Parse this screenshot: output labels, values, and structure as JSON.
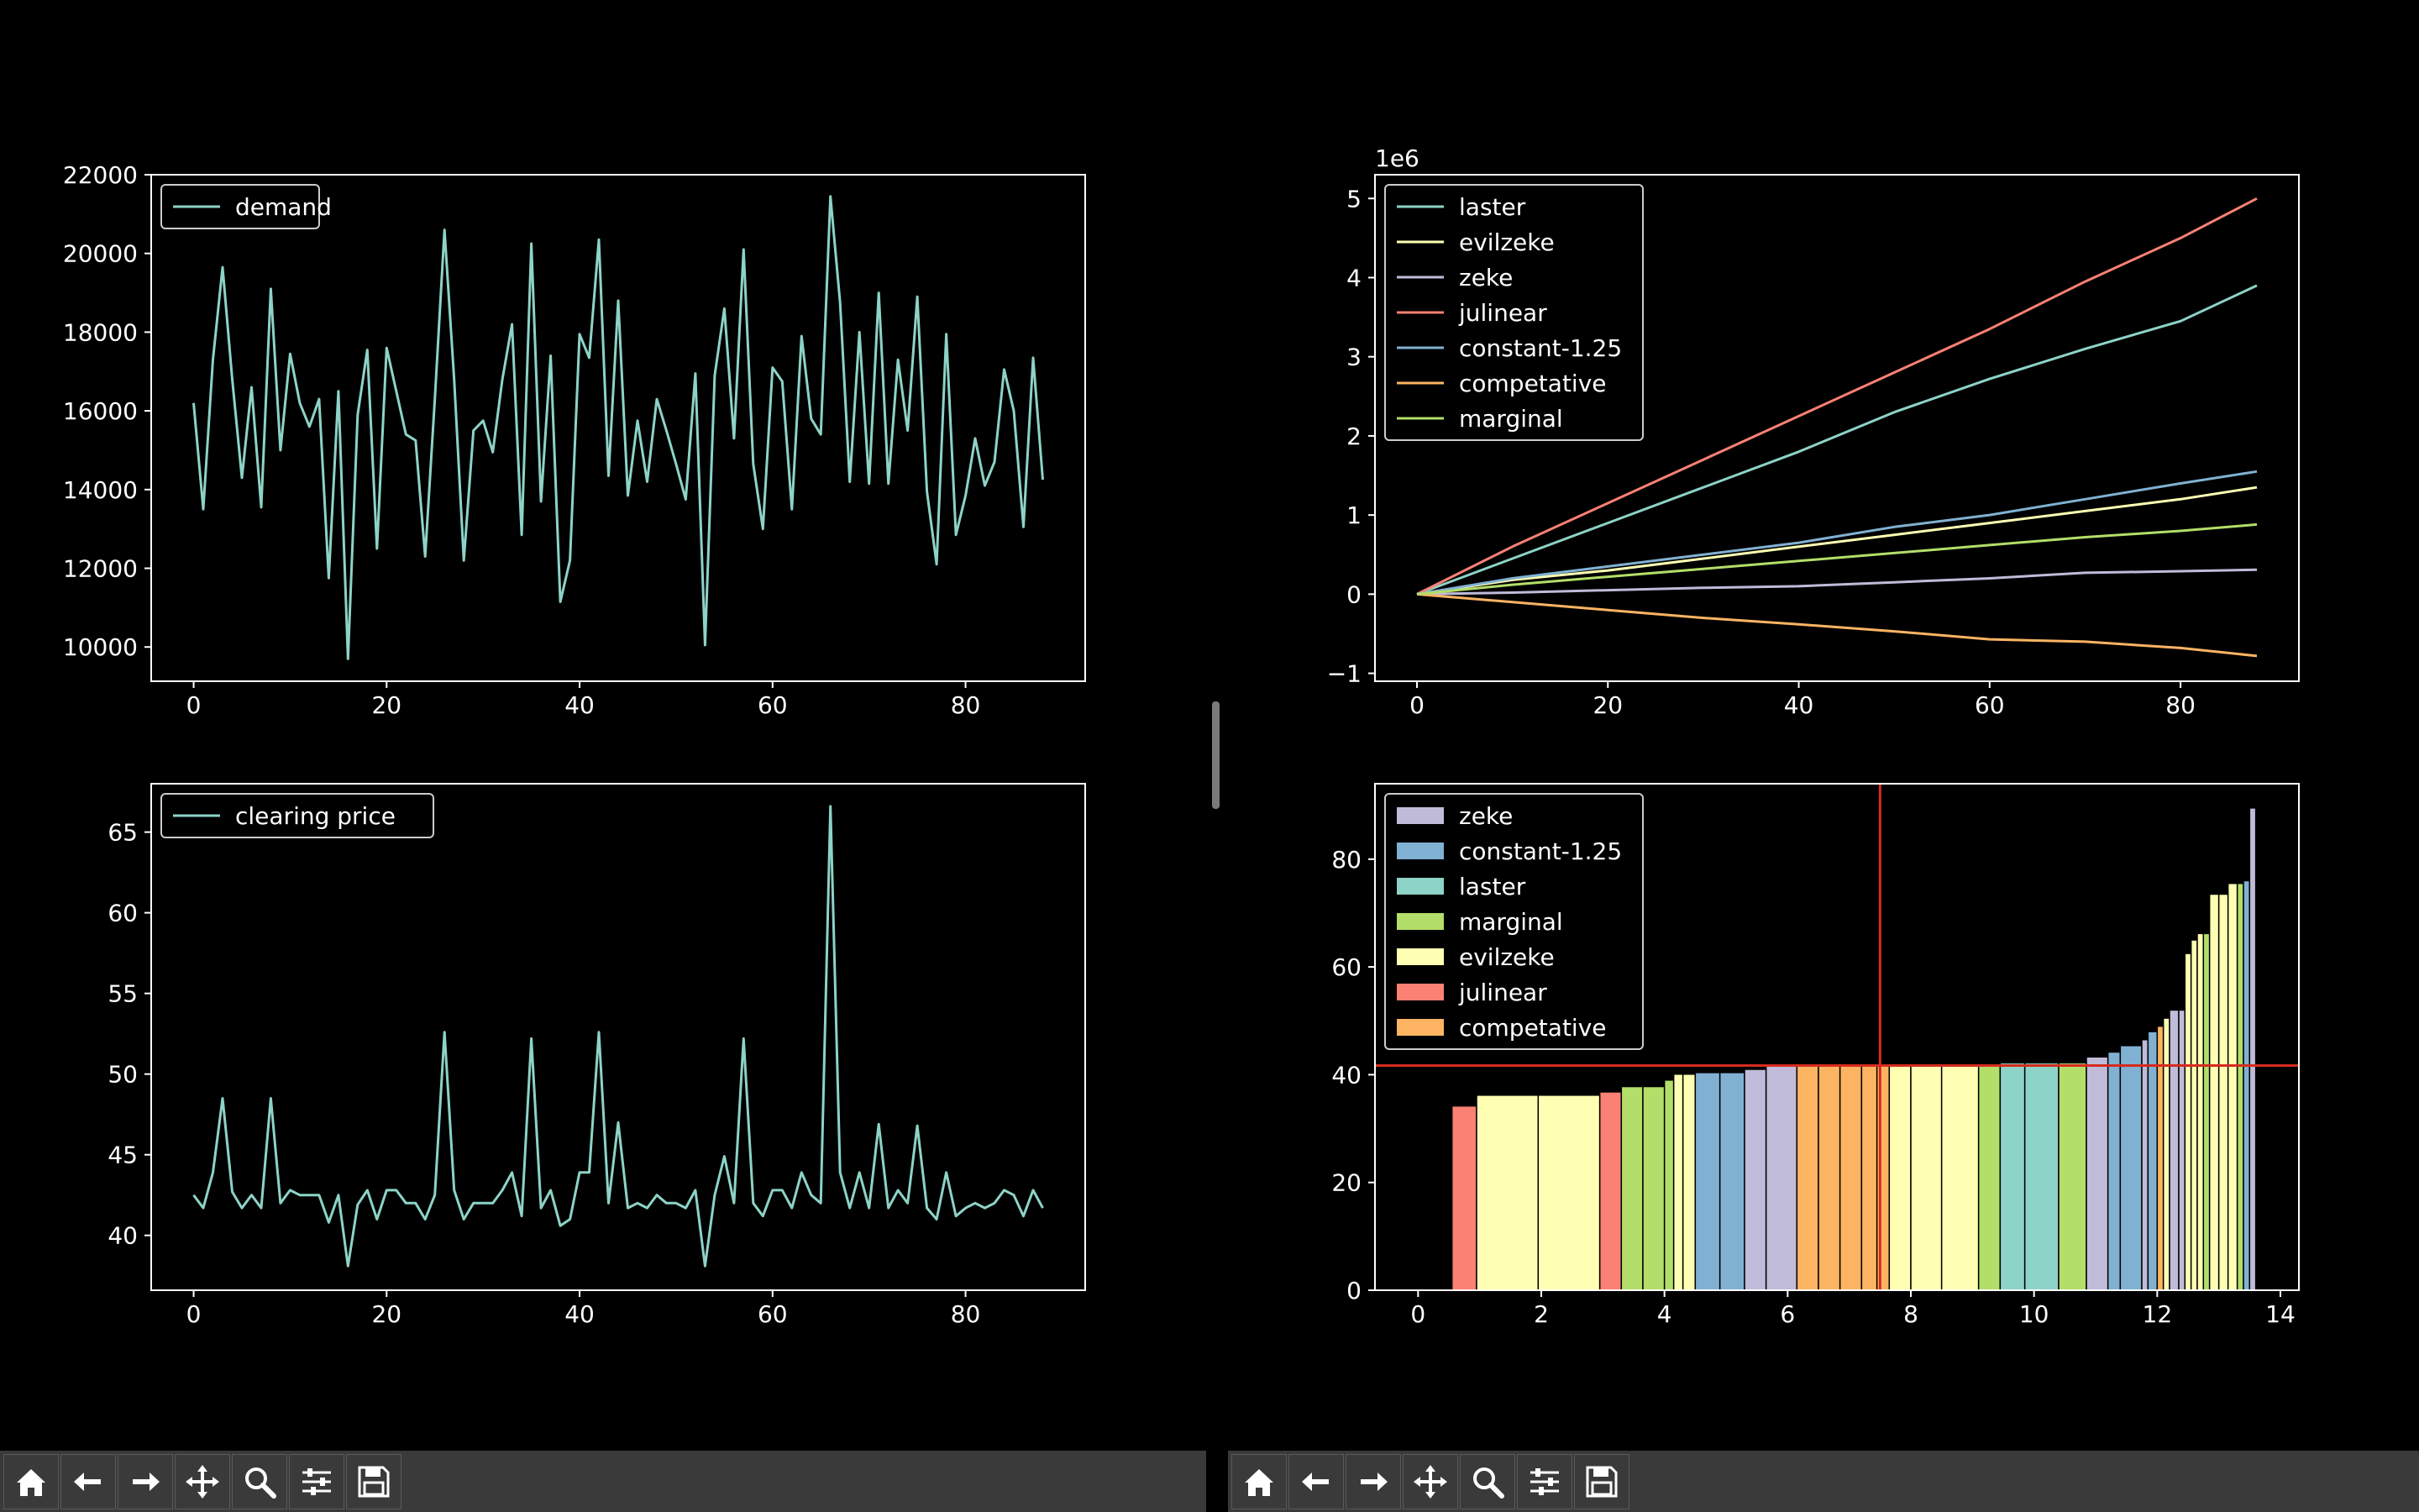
{
  "toolbar": {
    "buttons": [
      {
        "name": "home-icon",
        "label": "Home"
      },
      {
        "name": "back-arrow-icon",
        "label": "Back"
      },
      {
        "name": "forward-arrow-icon",
        "label": "Forward"
      },
      {
        "name": "pan-move-icon",
        "label": "Pan"
      },
      {
        "name": "zoom-magnifier-icon",
        "label": "Zoom"
      },
      {
        "name": "subplots-sliders-icon",
        "label": "Configure subplots"
      },
      {
        "name": "save-floppy-icon",
        "label": "Save"
      }
    ]
  },
  "colors": {
    "background": "#000000",
    "axes": "#ffffff",
    "laster": "#8dd3c7",
    "evilzeke": "#feffb3",
    "zeke": "#bfbbd9",
    "julinear": "#fa8174",
    "constant-1.25": "#81b1d2",
    "competative": "#fdb462",
    "marginal": "#b3de69",
    "refline": "#d62b1f"
  },
  "chart_data": [
    {
      "id": "demand",
      "type": "line",
      "title": "",
      "xlabel": "",
      "ylabel": "",
      "xlim": [
        -4.4,
        92.4
      ],
      "ylim": [
        9130,
        22000
      ],
      "xticks": [
        0,
        20,
        40,
        60,
        80
      ],
      "yticks": [
        10000,
        12000,
        14000,
        16000,
        18000,
        20000,
        22000
      ],
      "legend": {
        "placement": "upper-left"
      },
      "series": [
        {
          "name": "demand",
          "color": "#8dd3c7",
          "x_start": 0,
          "values": [
            16200,
            13500,
            17300,
            19650,
            16800,
            14300,
            16600,
            13550,
            19100,
            15000,
            17450,
            16200,
            15600,
            16300,
            11750,
            16500,
            9700,
            15900,
            17550,
            12500,
            17600,
            16500,
            15400,
            15250,
            12300,
            16300,
            20600,
            16800,
            12200,
            15500,
            15750,
            14950,
            16800,
            18200,
            12850,
            20250,
            13700,
            17400,
            11150,
            12200,
            17950,
            17350,
            20350,
            14350,
            18800,
            13850,
            15750,
            14200,
            16300,
            15500,
            14650,
            13750,
            16950,
            10050,
            16900,
            18600,
            15300,
            20100,
            14650,
            13000,
            17100,
            16750,
            13500,
            17900,
            15800,
            15400,
            21450,
            18750,
            14200,
            18000,
            14150,
            19000,
            14150,
            17300,
            15500,
            18900,
            13950,
            12100,
            17950,
            12850,
            13850,
            15300,
            14100,
            14700,
            17050,
            16000,
            13050,
            17350,
            14250
          ]
        }
      ]
    },
    {
      "id": "clearing-price",
      "type": "line",
      "title": "",
      "xlabel": "",
      "ylabel": "",
      "xlim": [
        -4.4,
        92.4
      ],
      "ylim": [
        36.6,
        68.0
      ],
      "xticks": [
        0,
        20,
        40,
        60,
        80
      ],
      "yticks": [
        40,
        45,
        50,
        55,
        60,
        65
      ],
      "legend": {
        "placement": "upper-left"
      },
      "series": [
        {
          "name": "clearing price",
          "color": "#8dd3c7",
          "x_start": 0,
          "values": [
            42.5,
            41.7,
            43.9,
            48.5,
            42.7,
            41.7,
            42.5,
            41.7,
            48.5,
            42.0,
            42.8,
            42.5,
            42.5,
            42.5,
            40.8,
            42.5,
            38.1,
            41.9,
            42.8,
            41.0,
            42.8,
            42.8,
            42.0,
            42.0,
            41.0,
            42.5,
            52.6,
            42.8,
            41.0,
            42.0,
            42.0,
            42.0,
            42.8,
            43.9,
            41.2,
            52.2,
            41.7,
            42.8,
            40.6,
            41.0,
            43.9,
            43.9,
            52.6,
            42.0,
            47.0,
            41.7,
            42.0,
            41.7,
            42.5,
            42.0,
            42.0,
            41.7,
            42.8,
            38.1,
            42.5,
            44.9,
            42.0,
            52.2,
            42.0,
            41.2,
            42.8,
            42.8,
            41.7,
            43.9,
            42.5,
            42.0,
            66.6,
            43.9,
            41.7,
            43.9,
            41.7,
            46.9,
            41.7,
            42.8,
            42.0,
            46.8,
            41.7,
            41.0,
            43.9,
            41.2,
            41.7,
            42.0,
            41.7,
            42.0,
            42.8,
            42.5,
            41.2,
            42.8,
            41.7
          ]
        }
      ]
    },
    {
      "id": "cumulative-profit",
      "type": "line",
      "title": "",
      "xlabel": "",
      "ylabel": "",
      "y_offset_label": "1e6",
      "xlim": [
        -4.4,
        92.4
      ],
      "ylim": [
        -1.1,
        5.3
      ],
      "xticks": [
        0,
        20,
        40,
        60,
        80
      ],
      "yticks": [
        -1,
        0,
        1,
        2,
        3,
        4,
        5
      ],
      "legend": {
        "placement": "upper-left"
      },
      "series": [
        {
          "name": "laster",
          "color": "#8dd3c7",
          "x": [
            0,
            10,
            20,
            30,
            40,
            50,
            60,
            70,
            80,
            88
          ],
          "values": [
            0,
            0.45,
            0.9,
            1.35,
            1.8,
            2.3,
            2.72,
            3.1,
            3.45,
            3.9
          ]
        },
        {
          "name": "evilzeke",
          "color": "#feffb3",
          "x": [
            0,
            10,
            20,
            30,
            40,
            50,
            60,
            70,
            80,
            88
          ],
          "values": [
            0,
            0.18,
            0.3,
            0.45,
            0.6,
            0.75,
            0.9,
            1.05,
            1.2,
            1.35
          ]
        },
        {
          "name": "zeke",
          "color": "#bfbbd9",
          "x": [
            0,
            10,
            20,
            30,
            40,
            50,
            60,
            70,
            80,
            88
          ],
          "values": [
            0,
            0.02,
            0.05,
            0.08,
            0.1,
            0.15,
            0.2,
            0.27,
            0.29,
            0.31
          ]
        },
        {
          "name": "julinear",
          "color": "#fa8174",
          "x": [
            0,
            10,
            20,
            30,
            40,
            50,
            60,
            70,
            80,
            88
          ],
          "values": [
            0,
            0.6,
            1.15,
            1.7,
            2.25,
            2.8,
            3.35,
            3.95,
            4.5,
            5.0
          ]
        },
        {
          "name": "constant-1.25",
          "color": "#81b1d2",
          "x": [
            0,
            10,
            20,
            30,
            40,
            50,
            60,
            70,
            80,
            88
          ],
          "values": [
            0,
            0.2,
            0.35,
            0.5,
            0.65,
            0.85,
            1.0,
            1.2,
            1.4,
            1.55
          ]
        },
        {
          "name": "competative",
          "color": "#fdb462",
          "x": [
            0,
            10,
            20,
            30,
            40,
            50,
            60,
            70,
            80,
            88
          ],
          "values": [
            0,
            -0.1,
            -0.2,
            -0.3,
            -0.38,
            -0.47,
            -0.57,
            -0.6,
            -0.68,
            -0.78
          ]
        },
        {
          "name": "marginal",
          "color": "#b3de69",
          "x": [
            0,
            10,
            20,
            30,
            40,
            50,
            60,
            70,
            80,
            88
          ],
          "values": [
            0,
            0.12,
            0.22,
            0.32,
            0.42,
            0.52,
            0.62,
            0.72,
            0.8,
            0.88
          ]
        }
      ]
    },
    {
      "id": "supply-curve",
      "type": "bar",
      "title": "",
      "xlabel": "",
      "ylabel": "",
      "xlim": [
        -0.7,
        14.3
      ],
      "ylim": [
        0,
        94
      ],
      "xticks": [
        0,
        2,
        4,
        6,
        8,
        10,
        12,
        14
      ],
      "yticks": [
        0,
        20,
        40,
        60,
        80
      ],
      "legend": {
        "placement": "upper-left",
        "entries": [
          "zeke",
          "constant-1.25",
          "laster",
          "marginal",
          "evilzeke",
          "julinear",
          "competative"
        ]
      },
      "hline": 41.7,
      "vline": 7.5,
      "bars": [
        {
          "x0": 0.55,
          "x1": 0.95,
          "value": 34.2,
          "series": "julinear"
        },
        {
          "x0": 0.95,
          "x1": 1.95,
          "value": 36.2,
          "series": "evilzeke"
        },
        {
          "x0": 1.95,
          "x1": 2.95,
          "value": 36.2,
          "series": "evilzeke"
        },
        {
          "x0": 2.95,
          "x1": 3.3,
          "value": 36.8,
          "series": "julinear"
        },
        {
          "x0": 3.3,
          "x1": 3.65,
          "value": 37.8,
          "series": "marginal"
        },
        {
          "x0": 3.65,
          "x1": 4.0,
          "value": 37.8,
          "series": "marginal"
        },
        {
          "x0": 4.0,
          "x1": 4.15,
          "value": 39.0,
          "series": "marginal"
        },
        {
          "x0": 4.15,
          "x1": 4.3,
          "value": 40.1,
          "series": "evilzeke"
        },
        {
          "x0": 4.3,
          "x1": 4.5,
          "value": 40.1,
          "series": "evilzeke"
        },
        {
          "x0": 4.5,
          "x1": 4.9,
          "value": 40.4,
          "series": "constant-1.25"
        },
        {
          "x0": 4.9,
          "x1": 5.3,
          "value": 40.4,
          "series": "constant-1.25"
        },
        {
          "x0": 5.3,
          "x1": 5.65,
          "value": 41.0,
          "series": "zeke"
        },
        {
          "x0": 5.65,
          "x1": 6.15,
          "value": 41.7,
          "series": "zeke"
        },
        {
          "x0": 6.15,
          "x1": 6.5,
          "value": 41.7,
          "series": "competative"
        },
        {
          "x0": 6.5,
          "x1": 6.85,
          "value": 41.7,
          "series": "competative"
        },
        {
          "x0": 6.85,
          "x1": 7.2,
          "value": 41.7,
          "series": "competative"
        },
        {
          "x0": 7.2,
          "x1": 7.45,
          "value": 41.7,
          "series": "competative"
        },
        {
          "x0": 7.45,
          "x1": 7.65,
          "value": 41.7,
          "series": "competative"
        },
        {
          "x0": 7.65,
          "x1": 8.0,
          "value": 41.7,
          "series": "evilzeke"
        },
        {
          "x0": 8.0,
          "x1": 8.5,
          "value": 41.7,
          "series": "evilzeke"
        },
        {
          "x0": 8.5,
          "x1": 9.1,
          "value": 41.7,
          "series": "evilzeke"
        },
        {
          "x0": 9.1,
          "x1": 9.45,
          "value": 41.7,
          "series": "marginal"
        },
        {
          "x0": 9.45,
          "x1": 9.85,
          "value": 42.2,
          "series": "laster"
        },
        {
          "x0": 9.85,
          "x1": 10.4,
          "value": 42.2,
          "series": "laster"
        },
        {
          "x0": 10.4,
          "x1": 10.85,
          "value": 42.2,
          "series": "marginal"
        },
        {
          "x0": 10.85,
          "x1": 11.2,
          "value": 43.3,
          "series": "zeke"
        },
        {
          "x0": 11.2,
          "x1": 11.4,
          "value": 44.2,
          "series": "constant-1.25"
        },
        {
          "x0": 11.4,
          "x1": 11.75,
          "value": 45.4,
          "series": "constant-1.25"
        },
        {
          "x0": 11.75,
          "x1": 11.85,
          "value": 46.5,
          "series": "zeke"
        },
        {
          "x0": 11.85,
          "x1": 12.0,
          "value": 48.0,
          "series": "constant-1.25"
        },
        {
          "x0": 12.0,
          "x1": 12.1,
          "value": 49.0,
          "series": "competative"
        },
        {
          "x0": 12.1,
          "x1": 12.2,
          "value": 50.5,
          "series": "evilzeke"
        },
        {
          "x0": 12.2,
          "x1": 12.35,
          "value": 52.0,
          "series": "zeke"
        },
        {
          "x0": 12.35,
          "x1": 12.45,
          "value": 52.0,
          "series": "zeke"
        },
        {
          "x0": 12.45,
          "x1": 12.55,
          "value": 62.5,
          "series": "evilzeke"
        },
        {
          "x0": 12.55,
          "x1": 12.65,
          "value": 65.0,
          "series": "evilzeke"
        },
        {
          "x0": 12.65,
          "x1": 12.75,
          "value": 66.2,
          "series": "evilzeke"
        },
        {
          "x0": 12.75,
          "x1": 12.85,
          "value": 66.2,
          "series": "marginal"
        },
        {
          "x0": 12.85,
          "x1": 13.0,
          "value": 73.5,
          "series": "evilzeke"
        },
        {
          "x0": 13.0,
          "x1": 13.15,
          "value": 73.5,
          "series": "evilzeke"
        },
        {
          "x0": 13.15,
          "x1": 13.3,
          "value": 75.5,
          "series": "evilzeke"
        },
        {
          "x0": 13.3,
          "x1": 13.4,
          "value": 75.5,
          "series": "marginal"
        },
        {
          "x0": 13.4,
          "x1": 13.5,
          "value": 76.0,
          "series": "constant-1.25"
        },
        {
          "x0": 13.5,
          "x1": 13.6,
          "value": 89.5,
          "series": "zeke"
        }
      ]
    }
  ]
}
